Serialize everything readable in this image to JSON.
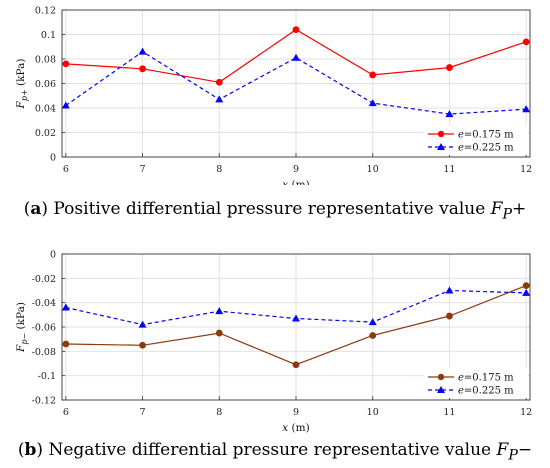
{
  "figure": {
    "caption_a": {
      "tag": "a",
      "text": "Positive differential pressure representative value ",
      "symbol": "F",
      "subscript": "P",
      "suffix": "+"
    },
    "caption_b": {
      "tag": "b",
      "text": "Negative differential pressure representative value ",
      "symbol": "F",
      "subscript": "P",
      "suffix": "−"
    }
  },
  "chart_data": [
    {
      "type": "line",
      "ylabel": "F_p+ (kPa)",
      "xlabel": "x (m)",
      "x": [
        6,
        7,
        8,
        9,
        10,
        11,
        12
      ],
      "xlim": [
        5.95,
        12.05
      ],
      "ylim": [
        0,
        0.12
      ],
      "xticks": [
        "6",
        "7",
        "8",
        "9",
        "10",
        "11",
        "12"
      ],
      "yticks": [
        "0",
        "0.02",
        "0.04",
        "0.06",
        "0.08",
        "0.1",
        "0.12"
      ],
      "grid": true,
      "legend_position": "bottom-right",
      "series": [
        {
          "name": "e=0.175 m",
          "color": "#ff0000",
          "marker": "circle",
          "dash": "solid",
          "values": [
            0.076,
            0.072,
            0.061,
            0.104,
            0.067,
            0.073,
            0.094
          ]
        },
        {
          "name": "e=0.225 m",
          "color": "#0000ff",
          "marker": "triangle",
          "dash": "dashed",
          "values": [
            0.042,
            0.086,
            0.047,
            0.081,
            0.044,
            0.035,
            0.039
          ]
        }
      ]
    },
    {
      "type": "line",
      "ylabel": "F_p− (kPa)",
      "xlabel": "x (m)",
      "x": [
        6,
        7,
        8,
        9,
        10,
        11,
        12
      ],
      "xlim": [
        5.95,
        12.05
      ],
      "ylim": [
        -0.12,
        0
      ],
      "xticks": [
        "6",
        "7",
        "8",
        "9",
        "10",
        "11",
        "12"
      ],
      "yticks": [
        "-0.12",
        "-0.1",
        "-0.08",
        "-0.06",
        "-0.04",
        "-0.02",
        "0"
      ],
      "grid": true,
      "legend_position": "bottom-right",
      "series": [
        {
          "name": "e=0.175 m",
          "color": "#8b3a0f",
          "marker": "circle",
          "dash": "solid",
          "values": [
            -0.074,
            -0.075,
            -0.065,
            -0.091,
            -0.067,
            -0.051,
            -0.026
          ]
        },
        {
          "name": "e=0.225 m",
          "color": "#0000ff",
          "marker": "triangle",
          "dash": "dashed",
          "values": [
            -0.044,
            -0.058,
            -0.047,
            -0.053,
            -0.056,
            -0.03,
            -0.032
          ]
        }
      ]
    }
  ]
}
